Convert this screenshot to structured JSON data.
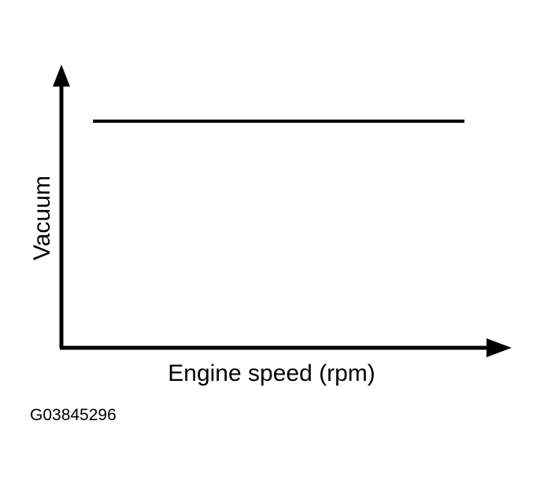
{
  "axes": {
    "y_label": "Vacuum",
    "x_label": "Engine speed (rpm)"
  },
  "figure_id": "G03845296"
}
